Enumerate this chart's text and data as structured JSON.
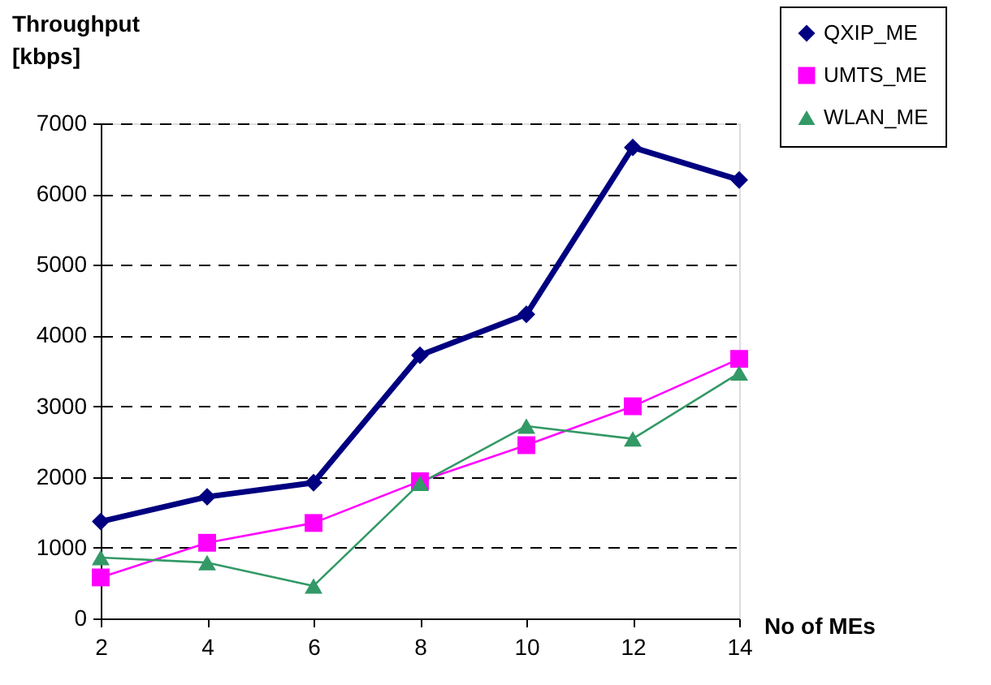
{
  "chart_data": {
    "type": "line",
    "xlabel": "No of MEs",
    "ylabel": "Throughput\n[kbps]",
    "x": [
      2,
      4,
      6,
      8,
      10,
      12,
      14
    ],
    "series": [
      {
        "name": "QXIP_ME",
        "color": "#000080",
        "marker": "diamond",
        "values": [
          1370,
          1720,
          1920,
          3720,
          4300,
          6660,
          6200
        ]
      },
      {
        "name": "UMTS_ME",
        "color": "#ff00ff",
        "marker": "square",
        "values": [
          580,
          1070,
          1350,
          1940,
          2450,
          3000,
          3670
        ]
      },
      {
        "name": "WLAN_ME",
        "color": "#339966",
        "marker": "triangle",
        "values": [
          860,
          790,
          460,
          1910,
          2720,
          2540,
          3470
        ]
      }
    ],
    "xlim": [
      2,
      14
    ],
    "xticks": [
      2,
      4,
      6,
      8,
      10,
      12,
      14
    ],
    "ylim": [
      0,
      7000
    ],
    "yticks": [
      0,
      1000,
      2000,
      3000,
      4000,
      5000,
      6000,
      7000
    ],
    "grid": "y",
    "legend": "top right",
    "line_style": "solid"
  }
}
